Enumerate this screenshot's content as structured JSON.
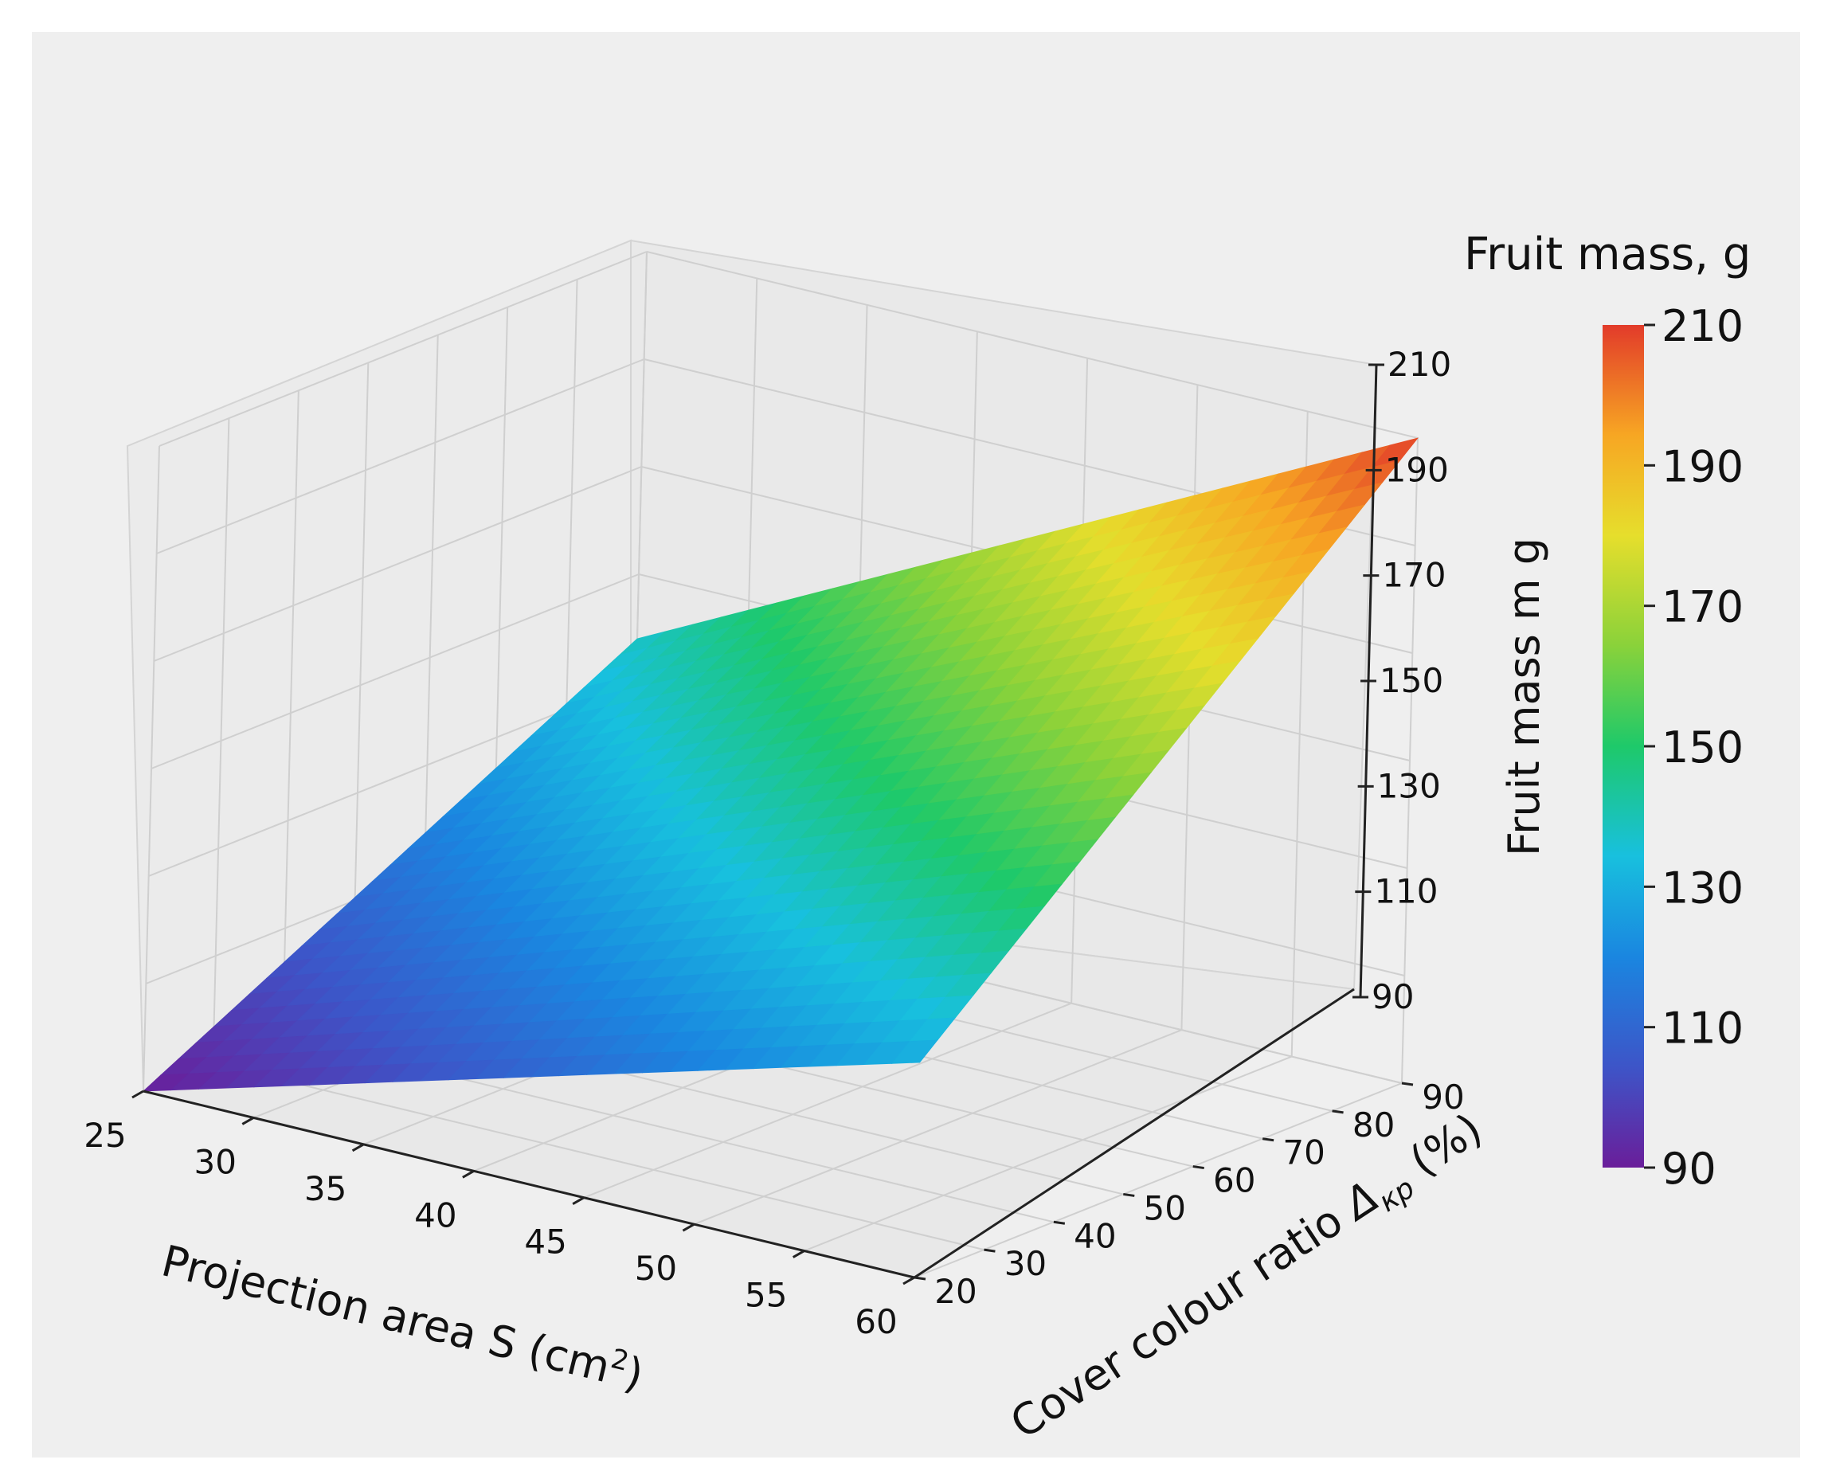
{
  "chart_data": {
    "type": "surface",
    "title": "",
    "x_axis": {
      "label": "Projection area S (cm",
      "label_sup": "2",
      "label_end": ")",
      "ticks": [
        "25",
        "30",
        "35",
        "40",
        "45",
        "50",
        "55",
        "60"
      ],
      "range": [
        25,
        60
      ]
    },
    "y_axis": {
      "label": "Cover colour ratio ",
      "label_symbol": "Δ",
      "label_sub": "кр",
      "label_end": " (%)",
      "ticks": [
        "20",
        "30",
        "40",
        "50",
        "60",
        "70",
        "80",
        "90"
      ],
      "range": [
        20,
        90
      ]
    },
    "z_axis": {
      "label": "Fruit mass m g",
      "ticks": [
        "90",
        "110",
        "130",
        "150",
        "170",
        "190",
        "210"
      ],
      "range": [
        90,
        210
      ]
    },
    "colorbar": {
      "title": "Fruit mass, g",
      "ticks": [
        "90",
        "110",
        "130",
        "150",
        "170",
        "190",
        "210"
      ],
      "range": [
        90,
        210
      ],
      "colormap": [
        "#6a1e9a",
        "#3d55c8",
        "#1a86e0",
        "#18c0de",
        "#1ec96a",
        "#8ad23a",
        "#e6de2c",
        "#f7a623",
        "#e23b2a"
      ]
    },
    "surface": {
      "x": [
        25,
        60
      ],
      "y": [
        20,
        90
      ],
      "corners": {
        "x25_y20": 90,
        "x60_y20": 130,
        "x25_y90": 138,
        "x60_y90": 210
      }
    }
  }
}
